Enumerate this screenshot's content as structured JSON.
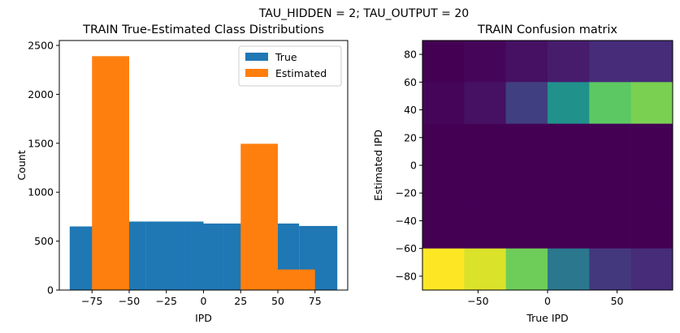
{
  "suptitle": "TAU_HIDDEN = 2; TAU_OUTPUT = 20",
  "chart_data": [
    {
      "type": "bar",
      "title": "TRAIN True-Estimated Class Distributions",
      "xlabel": "IPD",
      "ylabel": "Count",
      "xlim": [
        -97,
        97
      ],
      "ylim": [
        0,
        2550
      ],
      "xticks": [
        -75,
        -50,
        -25,
        0,
        25,
        50,
        75
      ],
      "xtick_labels": [
        "−75",
        "−50",
        "−25",
        "0",
        "25",
        "50",
        "75"
      ],
      "yticks": [
        0,
        500,
        1000,
        1500,
        2000,
        2500
      ],
      "ytick_labels": [
        "0",
        "500",
        "1000",
        "1500",
        "2000",
        "2500"
      ],
      "legend_position": "top-right",
      "series": [
        {
          "name": "True",
          "color": "#1f77b4",
          "bins": [
            {
              "x0": -90,
              "x1": -64.29,
              "value": 650
            },
            {
              "x0": -64.29,
              "x1": -38.57,
              "value": 700
            },
            {
              "x0": -38.57,
              "x1": -12.86,
              "value": 700
            },
            {
              "x0": -12.86,
              "x1": 0,
              "value": 700
            },
            {
              "x0": 0,
              "x1": 12.86,
              "value": 680
            },
            {
              "x0": 12.86,
              "x1": 38.57,
              "value": 680
            },
            {
              "x0": 38.57,
              "x1": 64.29,
              "value": 680
            },
            {
              "x0": 64.29,
              "x1": 90,
              "value": 655
            }
          ]
        },
        {
          "name": "Estimated",
          "color": "#ff7f0e",
          "bins": [
            {
              "x0": -75,
              "x1": -50,
              "value": 2390
            },
            {
              "x0": 25,
              "x1": 50,
              "value": 1495
            },
            {
              "x0": 50,
              "x1": 75,
              "value": 210
            }
          ]
        }
      ]
    },
    {
      "type": "heatmap",
      "title": "TRAIN Confusion matrix",
      "xlabel": "True IPD",
      "ylabel": "Estimated IPD",
      "xlim": [
        -90,
        90
      ],
      "ylim": [
        -90,
        90
      ],
      "xticks": [
        -50,
        0,
        50
      ],
      "xtick_labels": [
        "−50",
        "0",
        "50"
      ],
      "yticks": [
        -80,
        -60,
        -40,
        -20,
        0,
        20,
        40,
        60,
        80
      ],
      "ytick_labels": [
        "−80",
        "−60",
        "−40",
        "−20",
        "0",
        "20",
        "40",
        "60",
        "80"
      ],
      "x_edges": [
        -90,
        -60,
        -30,
        0,
        30,
        60,
        90
      ],
      "y_edges": [
        -90,
        -60,
        -30,
        0,
        30,
        60,
        90
      ],
      "rows_top_to_bottom": [
        {
          "y0": 60,
          "y1": 90,
          "values": [
            0.0,
            0.02,
            0.06,
            0.1,
            0.15,
            0.15
          ]
        },
        {
          "y0": 30,
          "y1": 60,
          "values": [
            0.02,
            0.06,
            0.2,
            0.5,
            0.75,
            0.8
          ]
        },
        {
          "y0": 0,
          "y1": 30,
          "values": [
            0.0,
            0.0,
            0.0,
            0.0,
            0.0,
            0.0
          ]
        },
        {
          "y0": -30,
          "y1": 0,
          "values": [
            0.0,
            0.0,
            0.0,
            0.0,
            0.0,
            0.0
          ]
        },
        {
          "y0": -60,
          "y1": -30,
          "values": [
            0.0,
            0.0,
            0.0,
            0.0,
            0.0,
            0.0
          ]
        },
        {
          "y0": -90,
          "y1": -60,
          "values": [
            1.0,
            0.95,
            0.78,
            0.4,
            0.18,
            0.15
          ]
        }
      ],
      "colormap": "viridis"
    }
  ]
}
